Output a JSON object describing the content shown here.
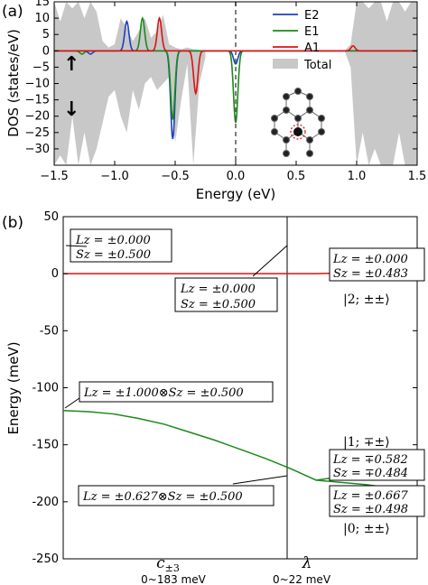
{
  "chart_data": [
    {
      "panel": "(a)",
      "type": "area",
      "xlabel": "Energy (eV)",
      "ylabel": "DOS (states/eV)",
      "xlim": [
        -1.5,
        1.5
      ],
      "ylim": [
        -35,
        15
      ],
      "xticks": [
        -1.5,
        -1.0,
        -0.5,
        0.0,
        0.5,
        1.0,
        1.5
      ],
      "xtick_labels": [
        "−1.5",
        "−1.0",
        "−0.5",
        "0.0",
        "0.5",
        "1.0",
        "1.5"
      ],
      "yticks": [
        -30,
        -25,
        -20,
        -15,
        -10,
        -5,
        0,
        5,
        10,
        15
      ],
      "ytick_labels": [
        "−30",
        "−25",
        "−20",
        "−15",
        "−10",
        "−5",
        "0",
        "5",
        "10",
        "15"
      ],
      "spin_up_arrow": "↑",
      "spin_down_arrow": "↓",
      "legend_position": "top-right",
      "series": [
        {
          "name": "E2",
          "color": "#1f3fbf",
          "peaks": [
            {
              "x": -0.9,
              "y": 9
            },
            {
              "x": -1.2,
              "y": -1
            },
            {
              "x": -0.52,
              "y": -27
            },
            {
              "x": 0.0,
              "y": -4
            }
          ]
        },
        {
          "name": "E1",
          "color": "#1a8a1a",
          "peaks": [
            {
              "x": -0.77,
              "y": 10
            },
            {
              "x": -1.27,
              "y": -1
            },
            {
              "x": -0.52,
              "y": -21
            },
            {
              "x": 0.0,
              "y": -22
            }
          ]
        },
        {
          "name": "A1",
          "color": "#e01010",
          "peaks": [
            {
              "x": -0.63,
              "y": 10
            },
            {
              "x": -0.33,
              "y": -13
            },
            {
              "x": 0.97,
              "y": 1.5
            }
          ]
        },
        {
          "name": "Total",
          "color": "#c8c8c8",
          "x": [
            -1.5,
            -1.45,
            -1.4,
            -1.35,
            -1.3,
            -1.25,
            -1.2,
            -1.15,
            -1.1,
            -1.05,
            -1.0,
            -0.95,
            -0.9,
            -0.85,
            -0.8,
            -0.75,
            -0.7,
            -0.65,
            -0.6,
            -0.55,
            -0.5,
            -0.45,
            -0.4,
            -0.35,
            -0.3,
            -0.25,
            0.9,
            0.95,
            1.0,
            1.05,
            1.1,
            1.15,
            1.2,
            1.25,
            1.3,
            1.35,
            1.4,
            1.45,
            1.5
          ],
          "up": [
            15,
            9,
            15,
            13,
            15,
            10,
            15,
            12,
            3,
            1,
            2,
            10,
            7,
            3,
            6,
            10,
            4,
            6,
            11,
            2,
            1,
            0.5,
            1,
            0.5,
            0.3,
            0,
            0,
            2,
            15,
            15,
            13,
            15,
            15,
            9,
            15,
            15,
            12,
            15,
            15
          ],
          "down": [
            -35,
            -32,
            -35,
            -20,
            -35,
            -25,
            -35,
            -30,
            -22,
            -14,
            -12,
            -20,
            -25,
            -12,
            -18,
            -10,
            -8,
            -12,
            -10,
            -8,
            -28,
            -15,
            -4,
            -35,
            -10,
            -2,
            0,
            -5,
            -35,
            -25,
            -35,
            -30,
            -35,
            -35,
            -35,
            -25,
            -35,
            -35,
            -35
          ]
        }
      ]
    },
    {
      "panel": "(b)",
      "type": "line",
      "ylabel": "Energy (meV)",
      "ylim": [
        -250,
        50
      ],
      "yticks": [
        50,
        0,
        -50,
        -100,
        -150,
        -200,
        -250
      ],
      "ytick_labels": [
        "50",
        "0",
        "-50",
        "-100",
        "-150",
        "-200",
        "-250"
      ],
      "x_section_labels": [
        "c±₃",
        "λ"
      ],
      "x_section_ranges": [
        "0~183 meV",
        "0~22 meV"
      ],
      "series": [
        {
          "color": "#e01010",
          "x": [
            0,
            0.25,
            0.5,
            0.75,
            1.0,
            1.1,
            1.2,
            1.3,
            1.4
          ],
          "y": [
            0,
            0,
            0,
            0,
            0,
            0.5,
            2,
            4,
            6
          ]
        },
        {
          "color": "#1a8a1a",
          "x": [
            0,
            0.1,
            0.2,
            0.3,
            0.4,
            0.5,
            0.6,
            0.7,
            0.8,
            0.9,
            1.0,
            1.1,
            1.2,
            1.3,
            1.4
          ],
          "y": [
            -120,
            -121,
            -123,
            -127,
            -132,
            -139,
            -146,
            -154,
            -162,
            -171,
            -181,
            -178,
            -177,
            -177,
            -177
          ]
        },
        {
          "color": "#1a8a1a",
          "x": [
            1.0,
            1.1,
            1.2,
            1.3,
            1.4
          ],
          "y": [
            -181,
            -183,
            -185,
            -188,
            -190
          ]
        }
      ],
      "annotations": [
        {
          "line1": "Lz = ±0.000",
          "line2": "Sz = ±0.500"
        },
        {
          "line1": "Lz = ±0.000",
          "line2": "Sz = ±0.500"
        },
        {
          "line1": "Lz = ±0.000",
          "line2": "Sz = ±0.483"
        },
        {
          "line1": "Lz = ±1.000⊗Sz = ±0.500"
        },
        {
          "line1": "Lz = ±0.627⊗Sz = ±0.500"
        },
        {
          "line1": "Lz = ∓0.582",
          "line2": "Sz = ∓0.484"
        },
        {
          "line1": "Lz = ±0.667",
          "line2": "Sz = ±0.498"
        }
      ],
      "state_labels": [
        "|2; ±±⟩",
        "|1; ∓±⟩",
        "|0; ±±⟩"
      ]
    }
  ]
}
